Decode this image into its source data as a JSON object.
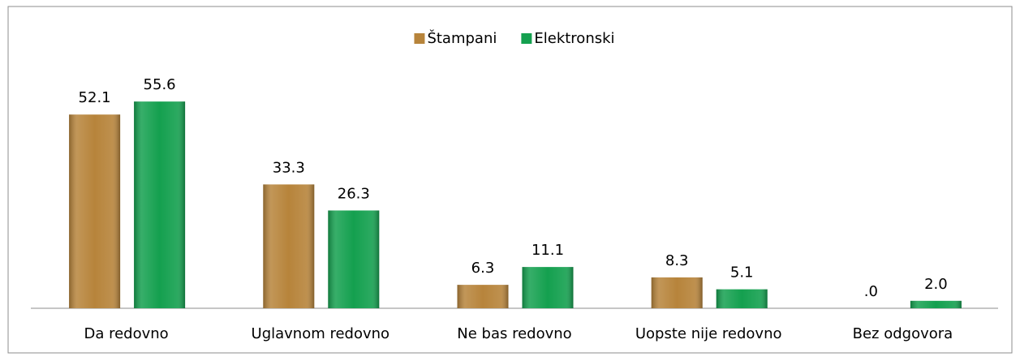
{
  "chart_data": {
    "type": "bar",
    "categories": [
      "Da redovno",
      "Uglavnom redovno",
      "Ne bas redovno",
      "Uopste nije redovno",
      "Bez odgovora"
    ],
    "series": [
      {
        "name": "Štampani",
        "color": "#b7843b",
        "values": [
          52.1,
          33.3,
          6.3,
          8.3,
          0
        ],
        "value_labels": [
          "52.1",
          "33.3",
          "6.3",
          "8.3",
          ".0"
        ]
      },
      {
        "name": "Elektronski",
        "color": "#14a04f",
        "values": [
          55.6,
          26.3,
          11.1,
          5.1,
          2.0
        ],
        "value_labels": [
          "55.6",
          "26.3",
          "11.1",
          "5.1",
          "2.0"
        ]
      }
    ],
    "ylim": [
      0,
      60
    ],
    "legend": "top"
  }
}
